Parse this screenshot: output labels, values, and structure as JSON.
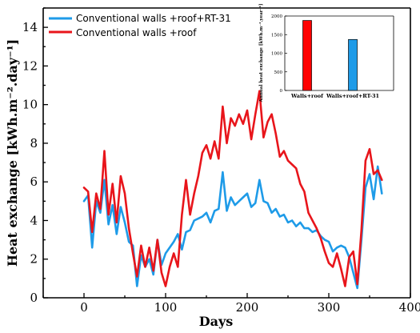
{
  "chart_data": [
    {
      "type": "line",
      "xlabel": "Days",
      "ylabel": "Heat exchange [kWh.m⁻².day⁻¹]",
      "xlim": [
        -50,
        400
      ],
      "ylim": [
        0,
        15
      ],
      "xticks": [
        0,
        100,
        200,
        300,
        400
      ],
      "yticks": [
        0,
        2,
        4,
        6,
        8,
        10,
        12,
        14
      ],
      "grid": false,
      "legend_position": "top-left",
      "series": [
        {
          "name": "Conventional walls +roof+RT-31",
          "color": "#1E9BE8",
          "x": [
            0,
            5,
            10,
            15,
            20,
            25,
            30,
            35,
            40,
            45,
            50,
            55,
            60,
            65,
            70,
            75,
            80,
            85,
            90,
            95,
            100,
            105,
            110,
            115,
            120,
            125,
            130,
            135,
            140,
            145,
            150,
            155,
            160,
            165,
            170,
            175,
            180,
            185,
            190,
            195,
            200,
            205,
            210,
            215,
            220,
            225,
            230,
            235,
            240,
            245,
            250,
            255,
            260,
            265,
            270,
            275,
            280,
            285,
            290,
            295,
            300,
            305,
            310,
            315,
            320,
            325,
            330,
            335,
            340,
            345,
            350,
            355,
            360,
            365
          ],
          "y": [
            5.0,
            5.3,
            2.6,
            5.0,
            4.4,
            6.1,
            3.8,
            4.8,
            3.3,
            4.7,
            3.9,
            2.9,
            2.7,
            0.6,
            2.2,
            1.6,
            2.0,
            1.2,
            3.0,
            1.7,
            2.3,
            2.6,
            2.9,
            3.3,
            2.5,
            3.4,
            3.5,
            4.0,
            4.1,
            4.2,
            4.4,
            3.9,
            4.5,
            4.6,
            6.5,
            4.5,
            5.2,
            4.8,
            5.0,
            5.2,
            5.4,
            4.7,
            4.9,
            6.1,
            5.0,
            4.9,
            4.4,
            4.6,
            4.2,
            4.3,
            3.9,
            4.0,
            3.7,
            3.9,
            3.6,
            3.6,
            3.4,
            3.5,
            3.2,
            3.0,
            2.9,
            2.4,
            2.6,
            2.7,
            2.6,
            2.1,
            1.3,
            0.5,
            3.0,
            5.7,
            6.4,
            5.1,
            6.8,
            5.4
          ]
        },
        {
          "name": "Conventional walls +roof",
          "color": "#E8151B",
          "x": [
            0,
            5,
            10,
            15,
            20,
            25,
            30,
            35,
            40,
            45,
            50,
            55,
            60,
            65,
            70,
            75,
            80,
            85,
            90,
            95,
            100,
            105,
            110,
            115,
            120,
            125,
            130,
            135,
            140,
            145,
            150,
            155,
            160,
            165,
            170,
            175,
            180,
            185,
            190,
            195,
            200,
            205,
            210,
            215,
            220,
            225,
            230,
            235,
            240,
            245,
            250,
            255,
            260,
            265,
            270,
            275,
            280,
            285,
            290,
            295,
            300,
            305,
            310,
            315,
            320,
            325,
            330,
            335,
            340,
            345,
            350,
            355,
            360,
            365
          ],
          "y": [
            5.7,
            5.5,
            3.4,
            5.4,
            4.6,
            7.6,
            4.3,
            5.9,
            3.9,
            6.3,
            5.4,
            3.6,
            2.3,
            1.1,
            2.7,
            1.6,
            2.6,
            1.4,
            3.0,
            1.3,
            0.6,
            1.6,
            2.3,
            1.6,
            4.3,
            6.1,
            4.3,
            5.4,
            6.3,
            7.5,
            7.9,
            7.2,
            8.1,
            7.2,
            9.9,
            8.0,
            9.3,
            8.9,
            9.5,
            9.0,
            9.7,
            8.2,
            9.5,
            10.7,
            8.3,
            9.1,
            9.5,
            8.5,
            7.3,
            7.6,
            7.1,
            6.9,
            6.7,
            5.9,
            5.5,
            4.4,
            4.0,
            3.6,
            3.1,
            2.4,
            1.8,
            1.6,
            2.3,
            1.5,
            0.6,
            2.1,
            2.4,
            0.7,
            3.5,
            7.1,
            7.7,
            6.4,
            6.6,
            6.1
          ]
        }
      ]
    },
    {
      "type": "bar",
      "ylabel": "Annual heat exchange [kWh.m⁻².year⁻¹]",
      "categories": [
        "Walls+roof",
        "Walls+roof+RT-31"
      ],
      "values": [
        1880,
        1370
      ],
      "colors": [
        "#FF0000",
        "#1E9BE8"
      ],
      "ylim": [
        0,
        2000
      ],
      "yticks": [
        0,
        500,
        1000,
        1500,
        2000
      ],
      "position": "top-right inset"
    }
  ]
}
